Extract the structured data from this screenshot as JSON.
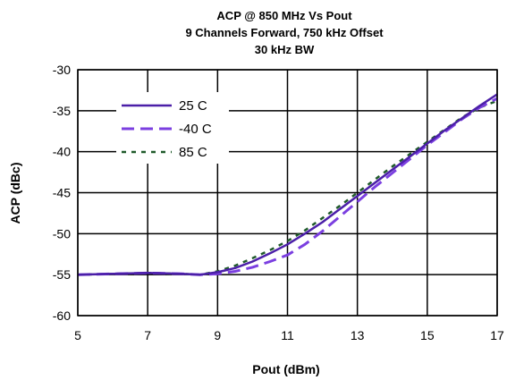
{
  "chart_data": {
    "type": "line",
    "title": [
      "ACP @ 850 MHz Vs Pout",
      "9 Channels Forward, 750 kHz Offset",
      "30 kHz BW"
    ],
    "xlabel": "Pout (dBm)",
    "ylabel": "ACP (dBc)",
    "xlim": [
      5,
      17
    ],
    "ylim": [
      -60,
      -30
    ],
    "xticks": [
      5,
      7,
      9,
      11,
      13,
      15,
      17
    ],
    "yticks": [
      -30,
      -35,
      -40,
      -45,
      -50,
      -55,
      -60
    ],
    "grid": true,
    "legend_position": "top-left",
    "series": [
      {
        "name": "25 C",
        "style": "solid",
        "color": "#4b1fa8",
        "x": [
          5,
          6,
          7,
          8,
          8.5,
          9,
          9.5,
          10,
          10.5,
          11,
          11.5,
          12,
          12.5,
          13,
          13.5,
          14,
          14.5,
          15,
          15.5,
          16,
          16.5,
          17
        ],
        "y": [
          -55,
          -54.9,
          -54.8,
          -54.9,
          -55,
          -54.7,
          -54.2,
          -53.4,
          -52.4,
          -51.3,
          -50.0,
          -48.6,
          -47.0,
          -45.4,
          -43.8,
          -42.2,
          -40.6,
          -39.0,
          -37.4,
          -35.9,
          -34.4,
          -33.0
        ]
      },
      {
        "name": "-40 C",
        "style": "dashed",
        "color": "#7b3fe0",
        "x": [
          5,
          6,
          7,
          8,
          8.5,
          9,
          9.5,
          10,
          10.5,
          11,
          11.5,
          12,
          12.5,
          13,
          13.5,
          14,
          14.5,
          15,
          15.5,
          16,
          16.5,
          17
        ],
        "y": [
          -55,
          -54.9,
          -54.8,
          -54.9,
          -55,
          -54.9,
          -54.6,
          -54.1,
          -53.4,
          -52.6,
          -51.3,
          -49.7,
          -47.9,
          -46.1,
          -44.3,
          -42.6,
          -40.9,
          -39.2,
          -37.6,
          -36.0,
          -34.6,
          -33.5
        ]
      },
      {
        "name": "85 C",
        "style": "dotted",
        "color": "#1f5a2a",
        "x": [
          5,
          6,
          7,
          8,
          8.5,
          9,
          9.5,
          10,
          10.5,
          11,
          11.5,
          12,
          12.5,
          13,
          13.5,
          14,
          14.5,
          15,
          15.5,
          16,
          16.5,
          17
        ],
        "y": [
          -55,
          -54.9,
          -54.8,
          -54.9,
          -55,
          -54.6,
          -53.9,
          -53.0,
          -52.0,
          -50.9,
          -49.6,
          -48.1,
          -46.6,
          -45.0,
          -43.4,
          -41.8,
          -40.3,
          -38.8,
          -37.3,
          -35.8,
          -34.6,
          -33.8
        ]
      }
    ]
  }
}
